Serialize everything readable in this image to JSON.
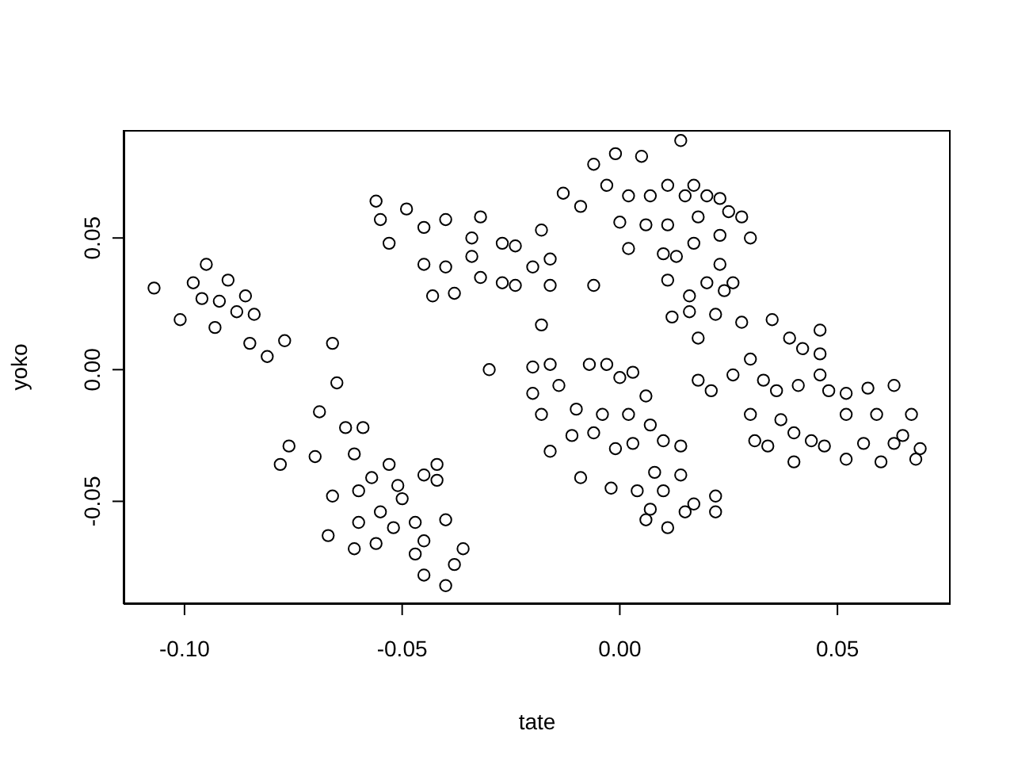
{
  "chart_data": {
    "type": "scatter",
    "xlabel": "tate",
    "ylabel": "yoko",
    "xlim": [
      -0.114,
      0.076
    ],
    "ylim": [
      -0.089,
      0.091
    ],
    "xticks": [
      {
        "value": -0.1,
        "label": "-0.10"
      },
      {
        "value": -0.05,
        "label": "-0.05"
      },
      {
        "value": 0,
        "label": "0.00"
      },
      {
        "value": 0.05,
        "label": "0.05"
      }
    ],
    "yticks": [
      {
        "value": -0.05,
        "label": "-0.05"
      },
      {
        "value": 0,
        "label": "0.00"
      },
      {
        "value": 0.05,
        "label": "0.05"
      }
    ],
    "grid": false,
    "legend": false,
    "marker": "circle",
    "series": [
      {
        "color": "#000000",
        "x": [
          -0.107,
          -0.101,
          -0.095,
          -0.098,
          -0.096,
          -0.092,
          -0.09,
          -0.088,
          -0.086,
          -0.084,
          -0.085,
          -0.081,
          -0.077,
          -0.093,
          -0.066,
          -0.065,
          -0.069,
          -0.076,
          -0.078,
          -0.07,
          -0.063,
          -0.059,
          -0.061,
          -0.057,
          -0.066,
          -0.06,
          -0.053,
          -0.045,
          -0.042,
          -0.042,
          -0.051,
          -0.05,
          -0.067,
          -0.061,
          -0.056,
          -0.052,
          -0.047,
          -0.045,
          -0.047,
          -0.045,
          -0.04,
          -0.038,
          -0.036,
          -0.04,
          -0.055,
          -0.06,
          -0.056,
          -0.049,
          -0.055,
          -0.053,
          -0.045,
          -0.04,
          -0.034,
          -0.032,
          -0.027,
          -0.024,
          -0.045,
          -0.04,
          -0.034,
          -0.043,
          -0.038,
          -0.032,
          -0.027,
          -0.024,
          -0.02,
          -0.016,
          -0.006,
          -0.018,
          -0.016,
          -0.018,
          -0.03,
          0.014,
          -0.006,
          -0.001,
          0.005,
          -0.013,
          -0.009,
          -0.003,
          0.002,
          0.007,
          0.011,
          0.017,
          0.015,
          0.02,
          0.023,
          0.025,
          0.028,
          0.03,
          0.0,
          0.006,
          0.011,
          0.018,
          0.002,
          0.01,
          0.013,
          0.017,
          0.023,
          0.011,
          0.016,
          0.02,
          0.023,
          0.026,
          0.024,
          -0.02,
          -0.016,
          -0.007,
          -0.003,
          0.003,
          0.0,
          0.006,
          -0.02,
          -0.018,
          -0.014,
          -0.01,
          -0.004,
          0.002,
          -0.016,
          -0.011,
          -0.006,
          -0.001,
          0.003,
          0.007,
          0.01,
          0.014,
          -0.009,
          -0.002,
          0.004,
          0.008,
          0.014,
          0.01,
          0.017,
          0.022,
          0.007,
          0.006,
          0.011,
          0.022,
          0.015,
          0.012,
          0.016,
          0.022,
          0.018,
          0.028,
          0.035,
          0.046,
          0.039,
          0.042,
          0.046,
          0.018,
          0.021,
          0.026,
          0.03,
          0.033,
          0.036,
          0.041,
          0.046,
          0.048,
          0.052,
          0.057,
          0.063,
          0.059,
          0.067,
          0.069,
          0.068,
          0.06,
          0.052,
          0.047,
          0.04,
          0.034,
          0.031,
          0.04,
          0.044,
          0.03,
          0.037,
          0.052,
          0.056,
          0.065,
          0.063
        ],
        "values": [
          0.031,
          0.019,
          0.04,
          0.033,
          0.027,
          0.026,
          0.034,
          0.022,
          0.028,
          0.021,
          0.01,
          0.005,
          0.011,
          0.016,
          0.01,
          -0.005,
          -0.016,
          -0.029,
          -0.036,
          -0.033,
          -0.022,
          -0.022,
          -0.032,
          -0.041,
          -0.048,
          -0.046,
          -0.036,
          -0.04,
          -0.036,
          -0.042,
          -0.044,
          -0.049,
          -0.063,
          -0.068,
          -0.066,
          -0.06,
          -0.058,
          -0.065,
          -0.07,
          -0.078,
          -0.082,
          -0.074,
          -0.068,
          -0.057,
          -0.054,
          -0.058,
          0.064,
          0.061,
          0.057,
          0.048,
          0.054,
          0.057,
          0.05,
          0.058,
          0.048,
          0.047,
          0.04,
          0.039,
          0.043,
          0.028,
          0.029,
          0.035,
          0.033,
          0.032,
          0.039,
          0.032,
          0.032,
          0.053,
          0.042,
          0.017,
          0.0,
          0.087,
          0.078,
          0.082,
          0.081,
          0.067,
          0.062,
          0.07,
          0.066,
          0.066,
          0.07,
          0.07,
          0.066,
          0.066,
          0.065,
          0.06,
          0.058,
          0.05,
          0.056,
          0.055,
          0.055,
          0.058,
          0.046,
          0.044,
          0.043,
          0.048,
          0.051,
          0.034,
          0.028,
          0.033,
          0.04,
          0.033,
          0.03,
          0.001,
          0.002,
          0.002,
          0.002,
          -0.001,
          -0.003,
          -0.01,
          -0.009,
          -0.017,
          -0.006,
          -0.015,
          -0.017,
          -0.017,
          -0.031,
          -0.025,
          -0.024,
          -0.03,
          -0.028,
          -0.021,
          -0.027,
          -0.029,
          -0.041,
          -0.045,
          -0.046,
          -0.039,
          -0.04,
          -0.046,
          -0.051,
          -0.048,
          -0.053,
          -0.057,
          -0.06,
          -0.054,
          -0.054,
          0.02,
          0.022,
          0.021,
          0.012,
          0.018,
          0.019,
          0.015,
          0.012,
          0.008,
          0.006,
          -0.004,
          -0.008,
          -0.002,
          0.004,
          -0.004,
          -0.008,
          -0.006,
          -0.002,
          -0.008,
          -0.009,
          -0.007,
          -0.006,
          -0.017,
          -0.017,
          -0.03,
          -0.034,
          -0.035,
          -0.034,
          -0.029,
          -0.035,
          -0.029,
          -0.027,
          -0.024,
          -0.027,
          -0.017,
          -0.019,
          -0.017,
          -0.028,
          -0.025,
          -0.028
        ]
      }
    ]
  }
}
